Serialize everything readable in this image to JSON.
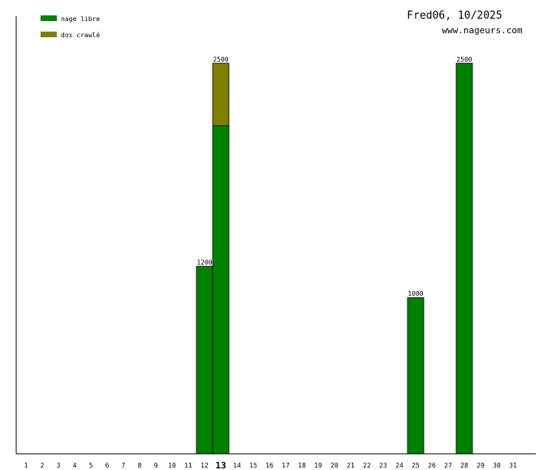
{
  "chart_data": {
    "type": "bar",
    "stacked": true,
    "title": "Fred06, 10/2025",
    "subtitle": "www.nageurs.com",
    "categories": [
      "1",
      "2",
      "3",
      "4",
      "5",
      "6",
      "7",
      "8",
      "9",
      "10",
      "11",
      "12",
      "13",
      "14",
      "15",
      "16",
      "17",
      "18",
      "19",
      "20",
      "21",
      "22",
      "23",
      "24",
      "25",
      "26",
      "27",
      "28",
      "29",
      "30",
      "31"
    ],
    "highlighted_category": "13",
    "series": [
      {
        "name": "nage libre",
        "color": "#008000",
        "values": [
          0,
          0,
          0,
          0,
          0,
          0,
          0,
          0,
          0,
          0,
          0,
          1200,
          2100,
          0,
          0,
          0,
          0,
          0,
          0,
          0,
          0,
          0,
          0,
          0,
          1000,
          0,
          0,
          2500,
          0,
          0,
          0
        ]
      },
      {
        "name": "dos crawlé",
        "color": "#808000",
        "values": [
          0,
          0,
          0,
          0,
          0,
          0,
          0,
          0,
          0,
          0,
          0,
          0,
          400,
          0,
          0,
          0,
          0,
          0,
          0,
          0,
          0,
          0,
          0,
          0,
          0,
          0,
          0,
          0,
          0,
          0,
          0
        ]
      }
    ],
    "totals": [
      0,
      0,
      0,
      0,
      0,
      0,
      0,
      0,
      0,
      0,
      0,
      1200,
      2500,
      0,
      0,
      0,
      0,
      0,
      0,
      0,
      0,
      0,
      0,
      0,
      1000,
      0,
      0,
      2500,
      0,
      0,
      0
    ],
    "ylim": [
      0,
      2500
    ],
    "xlabel": "",
    "ylabel": "",
    "grid": false,
    "legend_position": "top-left"
  }
}
